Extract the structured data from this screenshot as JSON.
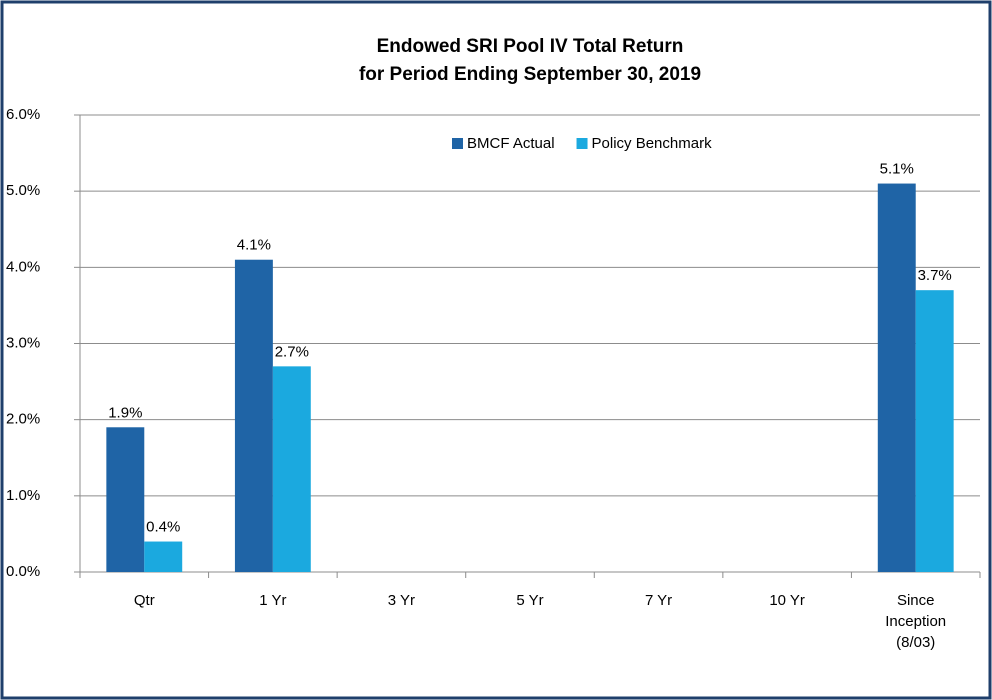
{
  "chart_data": {
    "type": "bar",
    "title": "Endowed SRI Pool IV Total Return",
    "subtitle": "for Period Ending September 30, 2019",
    "categories": [
      "Qtr",
      "1 Yr",
      "3 Yr",
      "5 Yr",
      "7 Yr",
      "10 Yr",
      "Since Inception (8/03)"
    ],
    "series": [
      {
        "name": "BMCF Actual",
        "color": "#1f64a6",
        "values": [
          1.9,
          4.1,
          null,
          null,
          null,
          null,
          5.1
        ],
        "value_labels": [
          "1.9%",
          "4.1%",
          null,
          null,
          null,
          null,
          "5.1%"
        ]
      },
      {
        "name": "Policy Benchmark",
        "color": "#1ba9df",
        "values": [
          0.4,
          2.7,
          null,
          null,
          null,
          null,
          3.7
        ],
        "value_labels": [
          "0.4%",
          "2.7%",
          null,
          null,
          null,
          null,
          "3.7%"
        ]
      }
    ],
    "ylim": [
      0,
      6
    ],
    "yticks": [
      {
        "value": 0,
        "label": "0.0%"
      },
      {
        "value": 1,
        "label": "1.0%"
      },
      {
        "value": 2,
        "label": "2.0%"
      },
      {
        "value": 3,
        "label": "3.0%"
      },
      {
        "value": 4,
        "label": "4.0%"
      },
      {
        "value": 5,
        "label": "5.0%"
      },
      {
        "value": 6,
        "label": "6.0%"
      }
    ],
    "grid": true,
    "legend": "top"
  }
}
